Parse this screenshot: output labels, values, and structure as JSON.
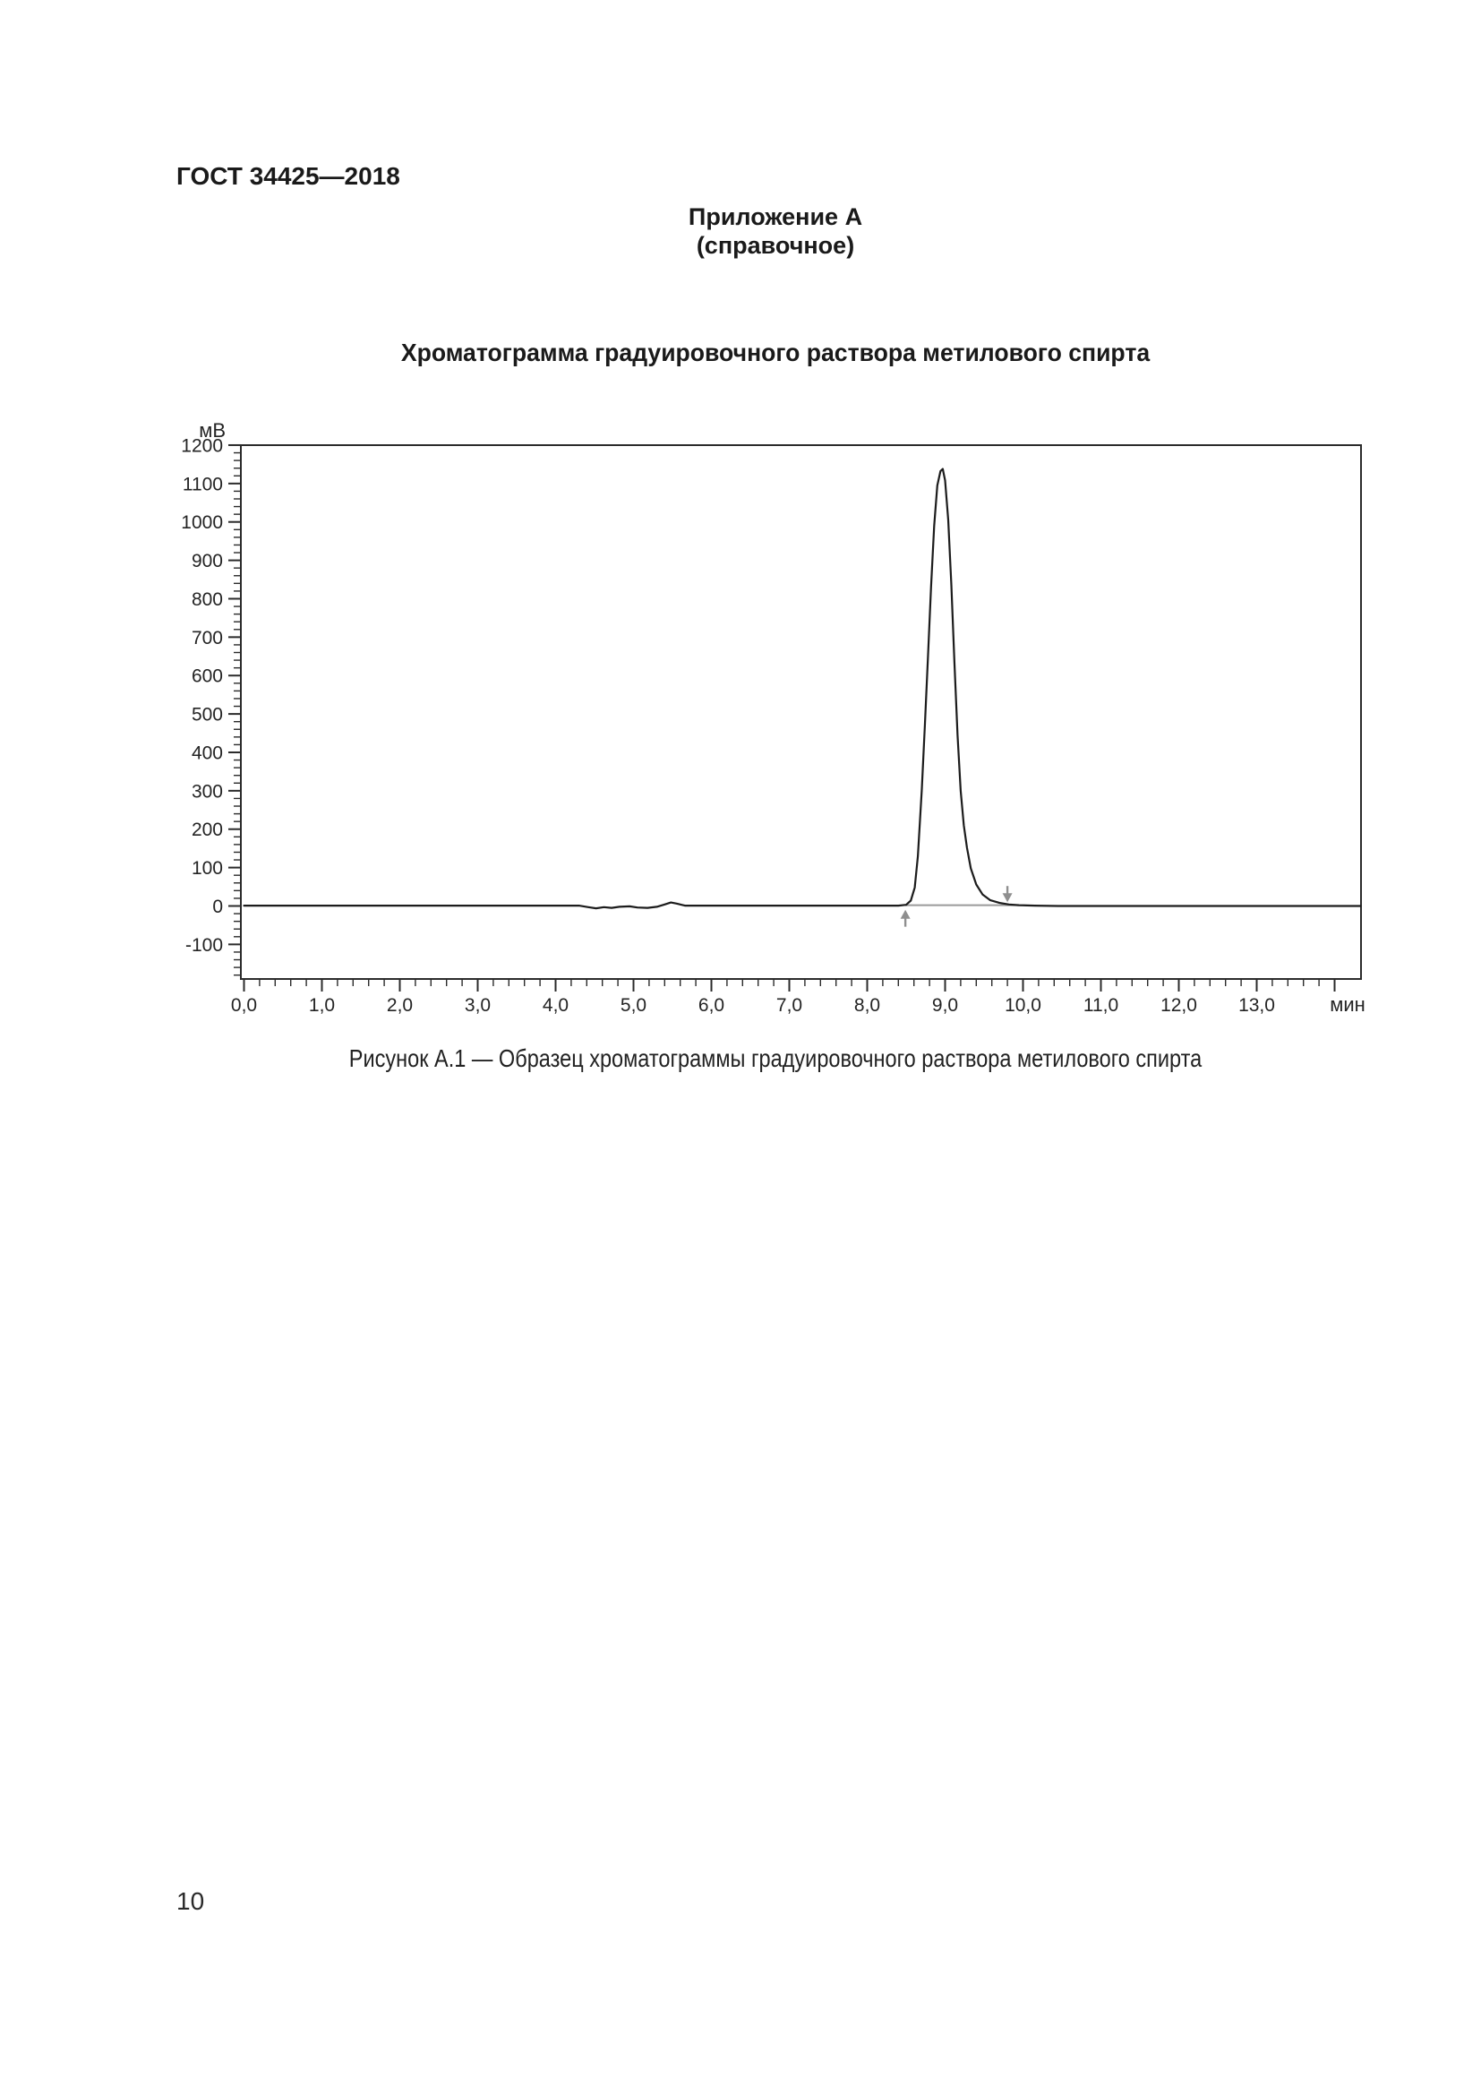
{
  "page": {
    "header": "ГОСТ 34425—2018",
    "appendix_title": "Приложение А",
    "appendix_subtitle": "(справочное)",
    "figure_title": "Хроматограмма градуировочного раствора метилового спирта",
    "figure_caption": "Рисунок А.1 — Образец хроматограммы градуировочного раствора метилового спирта",
    "page_number": "10"
  },
  "chart_data": {
    "type": "line",
    "title": "Хроматограмма градуировочного раствора метилового спирта",
    "xlabel": "мин",
    "ylabel": "мВ",
    "xlim": [
      0,
      14.35
    ],
    "ylim": [
      -190,
      1200
    ],
    "grid": false,
    "legend": "none",
    "x_major_tick_step": 1.0,
    "x_minor_tick_step": 0.2,
    "y_major_tick_step": 100,
    "y_minor_tick_step": 20,
    "x_tick_labels": [
      "0,0",
      "1,0",
      "2,0",
      "3,0",
      "4,0",
      "5,0",
      "6,0",
      "7,0",
      "8,0",
      "9,0",
      "10,0",
      "11,0",
      "12,0",
      "13,0"
    ],
    "y_tick_labels": [
      "1200",
      "1100",
      "1000",
      "900",
      "800",
      "700",
      "600",
      "500",
      "400",
      "300",
      "200",
      "100",
      "0",
      "-100"
    ],
    "series": [
      {
        "name": "detector-signal",
        "color": "#1c1c1c",
        "width": 2.2,
        "points": [
          [
            0,
            1
          ],
          [
            0.5,
            1
          ],
          [
            1,
            1
          ],
          [
            1.5,
            1
          ],
          [
            2,
            1
          ],
          [
            2.5,
            1
          ],
          [
            3,
            1
          ],
          [
            3.5,
            1
          ],
          [
            4,
            1
          ],
          [
            4.3,
            1
          ],
          [
            4.42,
            -3
          ],
          [
            4.52,
            -6
          ],
          [
            4.62,
            -3
          ],
          [
            4.72,
            -5
          ],
          [
            4.82,
            -2
          ],
          [
            4.95,
            -1
          ],
          [
            5.05,
            -4
          ],
          [
            5.18,
            -5
          ],
          [
            5.3,
            -2
          ],
          [
            5.4,
            4
          ],
          [
            5.48,
            9
          ],
          [
            5.56,
            6
          ],
          [
            5.66,
            1
          ],
          [
            6,
            1
          ],
          [
            6.5,
            1
          ],
          [
            7,
            1
          ],
          [
            7.5,
            1
          ],
          [
            8,
            1
          ],
          [
            8.4,
            1
          ],
          [
            8.5,
            3
          ],
          [
            8.56,
            14
          ],
          [
            8.61,
            48
          ],
          [
            8.65,
            130
          ],
          [
            8.7,
            300
          ],
          [
            8.74,
            470
          ],
          [
            8.78,
            650
          ],
          [
            8.82,
            830
          ],
          [
            8.86,
            990
          ],
          [
            8.9,
            1095
          ],
          [
            8.94,
            1132
          ],
          [
            8.97,
            1138
          ],
          [
            9.0,
            1108
          ],
          [
            9.04,
            1005
          ],
          [
            9.08,
            835
          ],
          [
            9.12,
            635
          ],
          [
            9.16,
            445
          ],
          [
            9.2,
            300
          ],
          [
            9.24,
            210
          ],
          [
            9.28,
            152
          ],
          [
            9.33,
            98
          ],
          [
            9.4,
            56
          ],
          [
            9.48,
            30
          ],
          [
            9.58,
            15
          ],
          [
            9.7,
            8
          ],
          [
            9.82,
            4
          ],
          [
            9.95,
            2
          ],
          [
            10.15,
            1
          ],
          [
            10.45,
            0
          ],
          [
            11,
            0
          ],
          [
            12,
            0
          ],
          [
            13,
            0
          ],
          [
            14.33,
            0
          ]
        ]
      },
      {
        "name": "integration-baseline",
        "color": "#9a9a9a",
        "width": 2,
        "points": [
          [
            8.49,
            2
          ],
          [
            9.94,
            2
          ]
        ]
      }
    ],
    "annotations": {
      "peak": {
        "apex_x_min": 8.95,
        "apex_mv": 1138,
        "start_x_min": 8.49,
        "end_x_min": 9.8
      },
      "markers": [
        {
          "shape": "arrow-up",
          "x_min": 8.49,
          "color": "#8f8f8f"
        },
        {
          "shape": "arrow-down",
          "x_min": 9.8,
          "color": "#8f8f8f"
        }
      ]
    }
  }
}
